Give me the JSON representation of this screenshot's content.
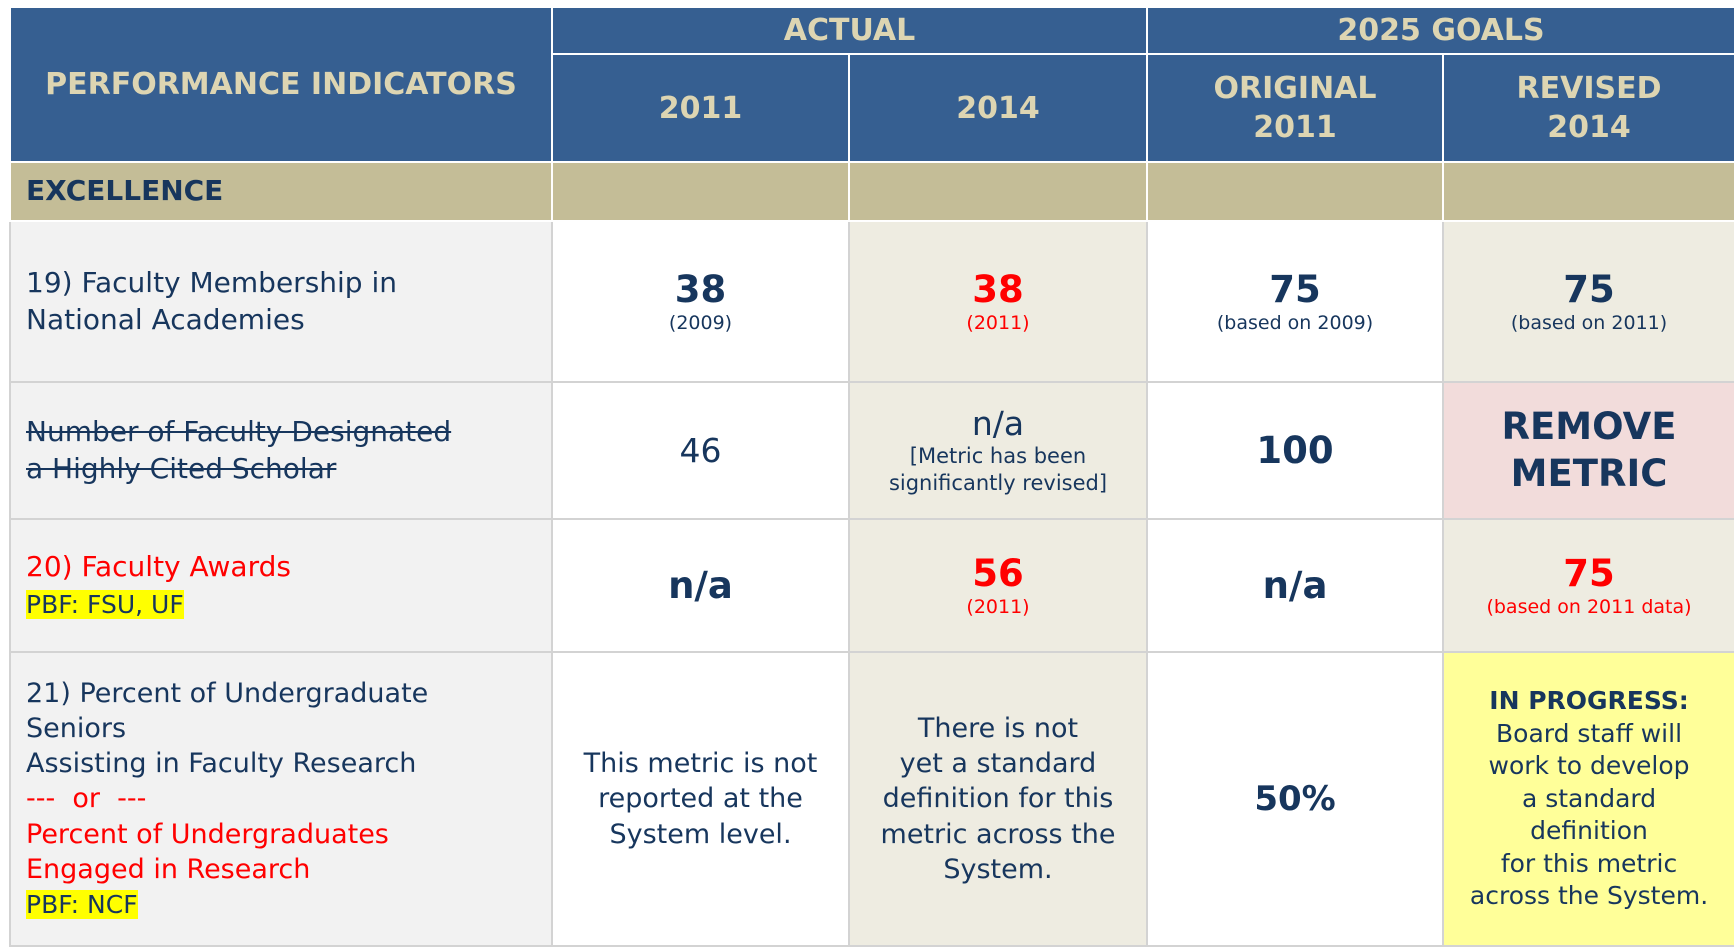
{
  "header": {
    "indicators": "PERFORMANCE INDICATORS",
    "actual": "ACTUAL",
    "goals": "2025 GOALS",
    "columns": [
      "2011",
      "2014",
      "ORIGINAL\n2011",
      "REVISED\n2014"
    ]
  },
  "section": "EXCELLENCE",
  "rows": [
    {
      "label": "19) Faculty Membership in\nNational Academies",
      "cells": [
        {
          "value": "38",
          "note": "(2009)"
        },
        {
          "value": "38",
          "note": "(2011)"
        },
        {
          "value": "75",
          "note": "(based on 2009)"
        },
        {
          "value": "75",
          "note": "(based on 2011)"
        }
      ]
    },
    {
      "label": "Number of Faculty Designated\na Highly Cited Scholar",
      "cells": [
        {
          "value": "46"
        },
        {
          "value": "n/a",
          "note": "[Metric has been\nsignificantly revised]"
        },
        {
          "value": "100"
        },
        {
          "value": "REMOVE\nMETRIC"
        }
      ]
    },
    {
      "label": "20) Faculty Awards",
      "tag": "PBF: FSU, UF",
      "cells": [
        {
          "value": "n/a"
        },
        {
          "value": "56",
          "note": "(2011)"
        },
        {
          "value": "n/a"
        },
        {
          "value": "75",
          "note": "(based on 2011 data)"
        }
      ]
    },
    {
      "label": "21) Percent of Undergraduate\nSeniors\nAssisting in Faculty Research",
      "alt_separator": "---  or  ---",
      "alt_label": "Percent of Undergraduates\nEngaged in Research",
      "tag": "PBF: NCF",
      "cells": [
        {
          "text": "This metric is not\nreported at the\nSystem level."
        },
        {
          "text": "There is not\nyet a standard\ndefinition for this\nmetric across the\nSystem."
        },
        {
          "value": "50%"
        },
        {
          "heading": "IN PROGRESS:",
          "text": "Board staff will\nwork to develop\na standard\ndefinition\nfor this metric\nacross the System."
        }
      ]
    }
  ]
}
